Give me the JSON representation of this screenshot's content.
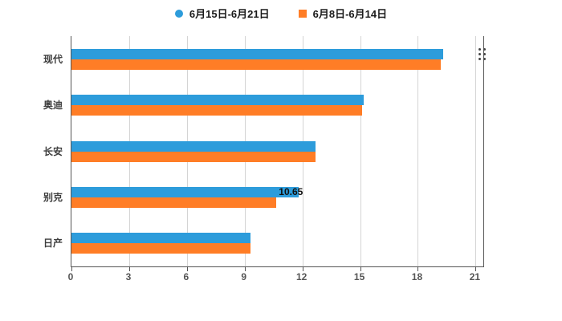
{
  "page": {
    "background": "#ffffff"
  },
  "legend": {
    "items": [
      {
        "label": "6月15日-6月21日",
        "marker": "circle",
        "color": "#2D9CDB"
      },
      {
        "label": "6月8日-6月14日",
        "marker": "square",
        "color": "#FF7D26"
      }
    ]
  },
  "chart_data": {
    "type": "bar",
    "orientation": "horizontal",
    "title": "",
    "categories": [
      "现代",
      "奥迪",
      "长安",
      "别克",
      "日产"
    ],
    "series": [
      {
        "name": "6月15日-6月21日",
        "color": "#2D9CDB",
        "values": [
          19.3,
          15.2,
          12.7,
          11.8,
          9.3
        ]
      },
      {
        "name": "6月8日-6月14日",
        "color": "#FF7D26",
        "values": [
          19.2,
          15.1,
          12.7,
          10.65,
          9.3
        ]
      }
    ],
    "xticks": [
      0,
      3,
      6,
      9,
      12,
      15,
      18,
      21
    ],
    "xlim": [
      0,
      21.4
    ],
    "grid": true,
    "legend_position": "top",
    "xlabel": "",
    "ylabel": "",
    "annotations": [
      {
        "text": "10.65",
        "category": "别克",
        "series": "6月8日-6月14日"
      }
    ]
  },
  "colors": {
    "axis": "#555555",
    "gridline": "#d4d4d4",
    "category_label": "#3d3d3d",
    "tick_label": "#555555"
  }
}
